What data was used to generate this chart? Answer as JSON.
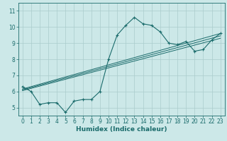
{
  "xlabel": "Humidex (Indice chaleur)",
  "ylabel": "",
  "bg_color": "#cce8e8",
  "grid_color": "#aacccc",
  "line_color": "#1a6b6b",
  "xlim": [
    -0.5,
    23.5
  ],
  "ylim": [
    4.5,
    11.5
  ],
  "xticks": [
    0,
    1,
    2,
    3,
    4,
    5,
    6,
    7,
    8,
    9,
    10,
    11,
    12,
    13,
    14,
    15,
    16,
    17,
    18,
    19,
    20,
    21,
    22,
    23
  ],
  "yticks": [
    5,
    6,
    7,
    8,
    9,
    10,
    11
  ],
  "series1_x": [
    0,
    1,
    2,
    3,
    4,
    5,
    6,
    7,
    8,
    9,
    10,
    11,
    12,
    13,
    14,
    15,
    16,
    17,
    18,
    19,
    20,
    21,
    22,
    23
  ],
  "series1_y": [
    6.3,
    6.0,
    5.2,
    5.3,
    5.3,
    4.7,
    5.4,
    5.5,
    5.5,
    6.0,
    8.0,
    9.5,
    10.1,
    10.6,
    10.2,
    10.1,
    9.7,
    9.0,
    8.9,
    9.1,
    8.5,
    8.6,
    9.2,
    9.6
  ],
  "line1_x": [
    0,
    23
  ],
  "line1_y": [
    6.15,
    9.6
  ],
  "line2_x": [
    0,
    23
  ],
  "line2_y": [
    6.05,
    9.3
  ],
  "line3_x": [
    0,
    23
  ],
  "line3_y": [
    6.1,
    9.45
  ],
  "tickfont": 5.5
}
